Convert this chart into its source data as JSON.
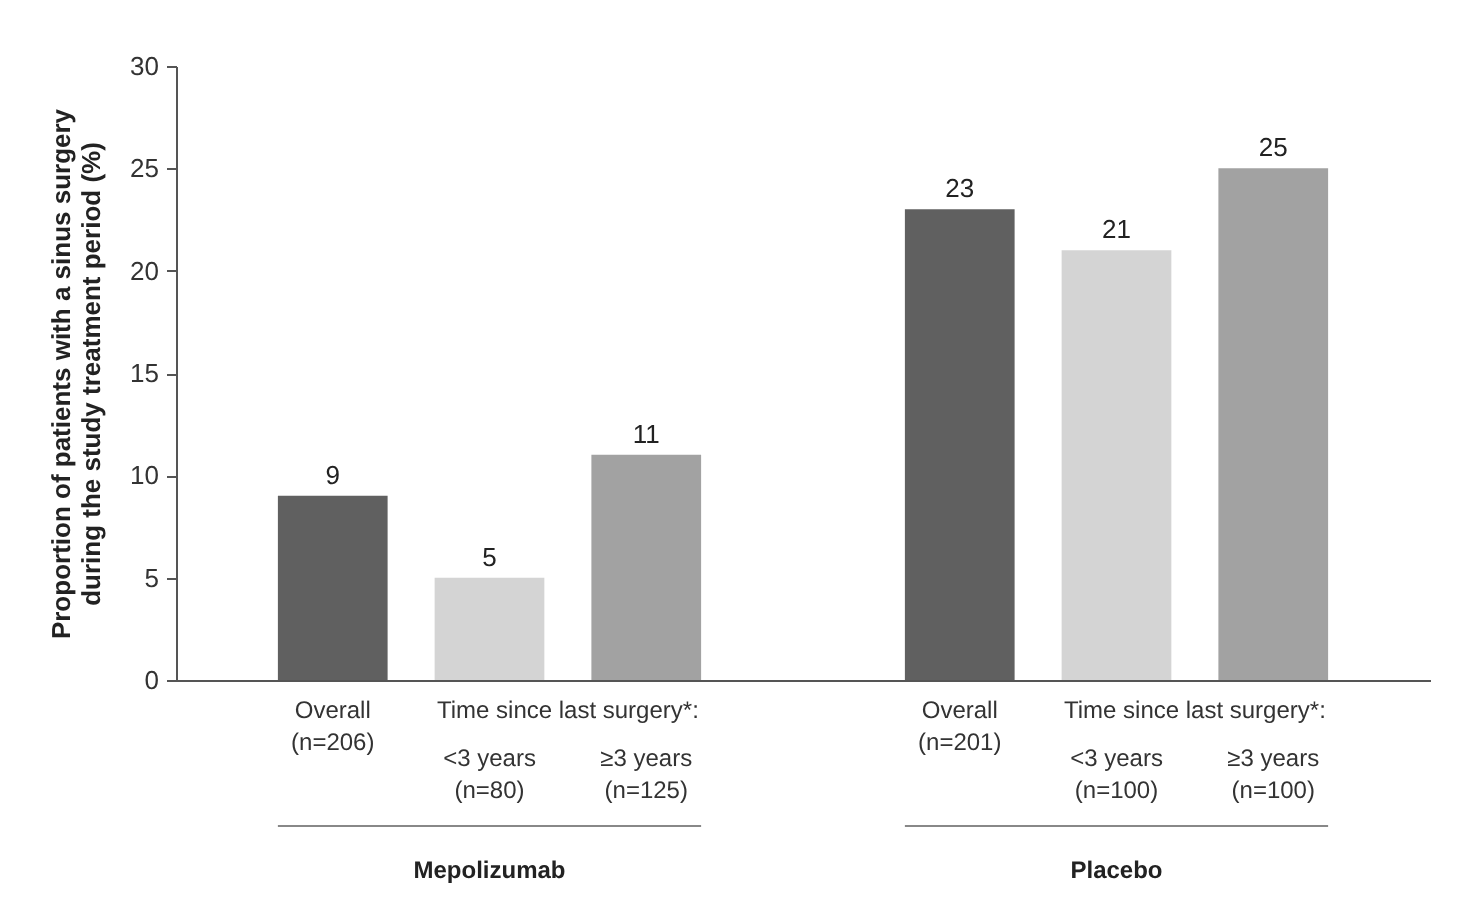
{
  "chart_data": {
    "type": "bar",
    "ylabel": "Proportion of patients with a sinus surgery during the study treatment period (%)",
    "categories": [
      "Overall (n=206)",
      "<3 years (n=80)",
      "≥3 years (n=125)",
      "Overall (n=201)",
      "<3 years (n=100)",
      "≥3 years (n=100)"
    ],
    "values": [
      9,
      5,
      11,
      23,
      21,
      25
    ],
    "colors": [
      "#606060",
      "#d4d4d4",
      "#a2a2a2",
      "#606060",
      "#d4d4d4",
      "#a2a2a2"
    ],
    "ylim": [
      0,
      30
    ],
    "yticks": [
      0,
      5,
      10,
      15,
      20,
      25,
      30
    ],
    "data_labels": true,
    "grid": false,
    "annotations": [
      "Time since last surgery*:",
      "Time since last surgery*:",
      "Mepolizumab",
      "Placebo"
    ]
  }
}
